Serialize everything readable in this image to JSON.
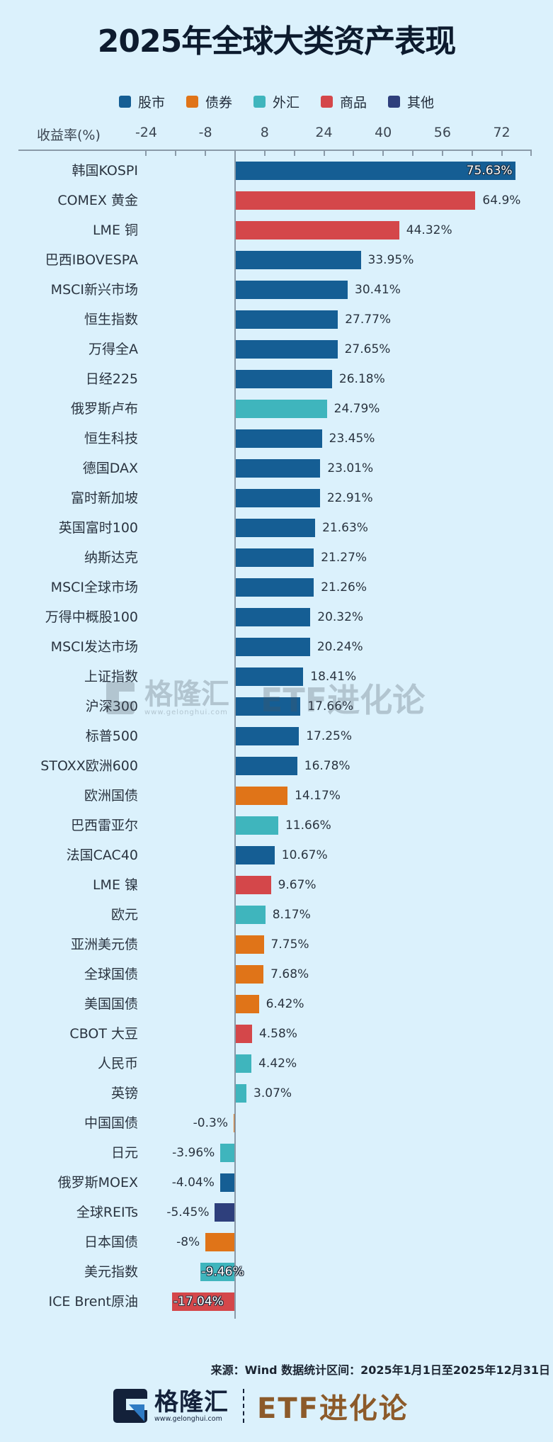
{
  "title": "2025年全球大类资产表现",
  "legend": [
    {
      "label": "股市",
      "color": "#155e94"
    },
    {
      "label": "债券",
      "color": "#e07418"
    },
    {
      "label": "外汇",
      "color": "#3fb5bd"
    },
    {
      "label": "商品",
      "color": "#d4474a"
    },
    {
      "label": "其他",
      "color": "#2e3f7c"
    }
  ],
  "axis": {
    "title": "收益率(%)",
    "tick_labels": [
      "-24",
      "-8",
      "8",
      "24",
      "40",
      "56",
      "72"
    ]
  },
  "watermark": {
    "brand": "格隆汇",
    "url": "www.gelonghui.com",
    "etf": "ETF进化论"
  },
  "footer": {
    "source": "来源：Wind 数据统计区间：2025年1月1日至2025年12月31日",
    "brand": "格隆汇",
    "url": "www.gelonghui.com",
    "etf": "ETF进化论"
  },
  "chart_data": {
    "type": "bar",
    "orientation": "horizontal",
    "title": "2025年全球大类资产表现",
    "xlabel": "收益率(%)",
    "ylabel": "",
    "xlim": [
      -32,
      80
    ],
    "xticks": [
      -24,
      -8,
      8,
      24,
      40,
      56,
      72
    ],
    "grid": false,
    "legend_position": "top",
    "categories": [
      "韩国KOSPI",
      "COMEX 黄金",
      "LME 铜",
      "巴西IBOVESPA",
      "MSCI新兴市场",
      "恒生指数",
      "万得全A",
      "日经225",
      "俄罗斯卢布",
      "恒生科技",
      "德国DAX",
      "富时新加坡",
      "英国富时100",
      "纳斯达克",
      "MSCI全球市场",
      "万得中概股100",
      "MSCI发达市场",
      "上证指数",
      "沪深300",
      "标普500",
      "STOXX欧洲600",
      "欧洲国债",
      "巴西雷亚尔",
      "法国CAC40",
      "LME 镍",
      "欧元",
      "亚洲美元债",
      "全球国债",
      "美国国债",
      "CBOT 大豆",
      "人民币",
      "英镑",
      "中国国债",
      "日元",
      "俄罗斯MOEX",
      "全球REITs",
      "日本国债",
      "美元指数",
      "ICE Brent原油"
    ],
    "values": [
      75.63,
      64.9,
      44.32,
      33.95,
      30.41,
      27.77,
      27.65,
      26.18,
      24.79,
      23.45,
      23.01,
      22.91,
      21.63,
      21.27,
      21.26,
      20.32,
      20.24,
      18.41,
      17.66,
      17.25,
      16.78,
      14.17,
      11.66,
      10.67,
      9.67,
      8.17,
      7.75,
      7.68,
      6.42,
      4.58,
      4.42,
      3.07,
      -0.3,
      -3.96,
      -4.04,
      -5.45,
      -8,
      -9.46,
      -17.04
    ],
    "value_labels": [
      "75.63%",
      "64.9%",
      "44.32%",
      "33.95%",
      "30.41%",
      "27.77%",
      "27.65%",
      "26.18%",
      "24.79%",
      "23.45%",
      "23.01%",
      "22.91%",
      "21.63%",
      "21.27%",
      "21.26%",
      "20.32%",
      "20.24%",
      "18.41%",
      "17.66%",
      "17.25%",
      "16.78%",
      "14.17%",
      "11.66%",
      "10.67%",
      "9.67%",
      "8.17%",
      "7.75%",
      "7.68%",
      "6.42%",
      "4.58%",
      "4.42%",
      "3.07%",
      "-0.3%",
      "-3.96%",
      "-4.04%",
      "-5.45%",
      "-8%",
      "-9.46%",
      "-17.04%"
    ],
    "groups": [
      "股市",
      "商品",
      "商品",
      "股市",
      "股市",
      "股市",
      "股市",
      "股市",
      "外汇",
      "股市",
      "股市",
      "股市",
      "股市",
      "股市",
      "股市",
      "股市",
      "股市",
      "股市",
      "股市",
      "股市",
      "股市",
      "债券",
      "外汇",
      "股市",
      "商品",
      "外汇",
      "债券",
      "债券",
      "债券",
      "商品",
      "外汇",
      "外汇",
      "债券",
      "外汇",
      "股市",
      "其他",
      "债券",
      "外汇",
      "商品"
    ],
    "group_colors": {
      "股市": "#155e94",
      "债券": "#e07418",
      "外汇": "#3fb5bd",
      "商品": "#d4474a",
      "其他": "#2e3f7c"
    }
  }
}
